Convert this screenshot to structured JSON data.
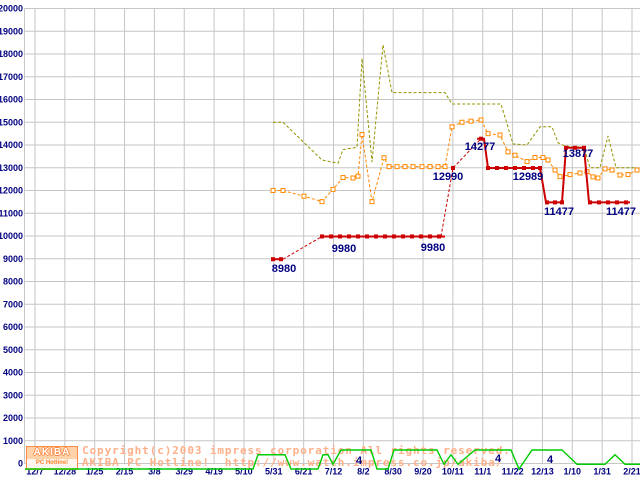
{
  "footer": {
    "logo": {
      "line1": "AKIBA",
      "line2": "PC Hotline!"
    },
    "copyright_line1": "Copyright(c)2003 impress corporation All rights reserved.",
    "copyright_line2": "AKIBA PC Hotline!  http://www.watch.impress.co.jp/akiba/"
  },
  "chart_data": {
    "type": "line",
    "title": "",
    "xlabel": "",
    "ylabel": "",
    "grid": true,
    "legend_position": "none",
    "colors": {
      "grid": "#c6c6c6",
      "axis_text": "#000080",
      "max_line": "#949400",
      "avg_line": "#ff8800",
      "min_line": "#cc0000",
      "shops_line": "#00cc00",
      "annotation": "#000080"
    },
    "y_axis": {
      "min": 0,
      "max": 20000,
      "step": 1000,
      "labels": [
        "0",
        "1000",
        "2000",
        "3000",
        "4000",
        "5000",
        "6000",
        "7000",
        "8000",
        "9000",
        "10000",
        "11000",
        "12000",
        "13000",
        "14000",
        "15000",
        "16000",
        "17000",
        "18000",
        "19000",
        "20000"
      ]
    },
    "x_axis": {
      "labels": [
        "12/7",
        "12/28",
        "1/25",
        "2/15",
        "3/8",
        "3/29",
        "4/19",
        "5/10",
        "5/31",
        "6/21",
        "7/12",
        "8/2",
        "8/30",
        "9/20",
        "10/11",
        "11/1",
        "11/22",
        "12/13",
        "1/10",
        "1/31",
        "2/21"
      ]
    },
    "series": [
      {
        "id": "max-price",
        "name": "highest-price",
        "style": "dashed",
        "points": [
          [
            273,
            15000
          ],
          [
            283,
            15000
          ],
          [
            322,
            13340
          ],
          [
            338,
            13200
          ],
          [
            343,
            13800
          ],
          [
            357,
            13900
          ],
          [
            362,
            17800
          ],
          [
            372,
            13250
          ],
          [
            383,
            18400
          ],
          [
            392,
            16300
          ],
          [
            445,
            16300
          ],
          [
            452,
            15800
          ],
          [
            501,
            15800
          ],
          [
            513,
            14050
          ],
          [
            527,
            14000
          ],
          [
            540,
            14800
          ],
          [
            552,
            14800
          ],
          [
            558,
            14100
          ],
          [
            565,
            13950
          ],
          [
            584,
            13900
          ],
          [
            590,
            13000
          ],
          [
            600,
            13000
          ],
          [
            608,
            14400
          ],
          [
            616,
            13000
          ],
          [
            637,
            13000
          ]
        ]
      },
      {
        "id": "avg-price",
        "name": "average-price",
        "style": "dashed-open-markers",
        "points": [
          [
            273,
            12000
          ],
          [
            283,
            12000
          ],
          [
            304,
            11750
          ],
          [
            322,
            11510
          ],
          [
            333,
            12050
          ],
          [
            343,
            12570
          ],
          [
            353,
            12550
          ],
          [
            358,
            12630
          ],
          [
            362,
            14460
          ],
          [
            372,
            11510
          ],
          [
            384,
            13440
          ],
          [
            389,
            13050
          ],
          [
            397,
            13050
          ],
          [
            405,
            13050
          ],
          [
            413,
            13050
          ],
          [
            422,
            13050
          ],
          [
            430,
            13050
          ],
          [
            438,
            13050
          ],
          [
            445,
            13050
          ],
          [
            452,
            14800
          ],
          [
            462,
            15000
          ],
          [
            471,
            15050
          ],
          [
            481,
            15100
          ],
          [
            488,
            14500
          ],
          [
            500,
            14440
          ],
          [
            508,
            13700
          ],
          [
            515,
            13550
          ],
          [
            527,
            13270
          ],
          [
            535,
            13450
          ],
          [
            543,
            13450
          ],
          [
            548,
            13340
          ],
          [
            555,
            12900
          ],
          [
            560,
            12610
          ],
          [
            570,
            12700
          ],
          [
            580,
            12770
          ],
          [
            587,
            12830
          ],
          [
            593,
            12600
          ],
          [
            598,
            12550
          ],
          [
            605,
            12950
          ],
          [
            612,
            12900
          ],
          [
            620,
            12680
          ],
          [
            628,
            12700
          ],
          [
            637,
            12900
          ]
        ]
      },
      {
        "id": "min-price",
        "name": "lowest-price",
        "style": "mixed",
        "segments": [
          {
            "dash": false,
            "pts": [
              [
                273,
                8980
              ],
              [
                283,
                8980
              ]
            ]
          },
          {
            "dash": true,
            "pts": [
              [
                283,
                8980
              ],
              [
                322,
                9980
              ]
            ]
          },
          {
            "dash": false,
            "pts": [
              [
                322,
                9980
              ],
              [
                445,
                9980
              ]
            ]
          },
          {
            "dash": true,
            "pts": [
              [
                441,
                9980
              ],
              [
                453,
                12990
              ],
              [
                481,
                14277
              ]
            ]
          },
          {
            "dash": false,
            "pts": [
              [
                477,
                14277
              ],
              [
                484,
                14277
              ],
              [
                488,
                12989
              ],
              [
                540,
                12989
              ],
              [
                546,
                11477
              ],
              [
                562,
                11477
              ],
              [
                566,
                13877
              ],
              [
                584,
                13877
              ],
              [
                589,
                11477
              ],
              [
                630,
                11477
              ]
            ]
          }
        ],
        "markers": [
          [
            273,
            8980
          ],
          [
            281,
            8980
          ],
          [
            322,
            9980
          ],
          [
            331,
            9980
          ],
          [
            340,
            9980
          ],
          [
            349,
            9980
          ],
          [
            358,
            9980
          ],
          [
            367,
            9980
          ],
          [
            376,
            9980
          ],
          [
            385,
            9980
          ],
          [
            394,
            9980
          ],
          [
            403,
            9980
          ],
          [
            412,
            9980
          ],
          [
            421,
            9980
          ],
          [
            430,
            9980
          ],
          [
            439,
            9980
          ],
          [
            453,
            12990
          ],
          [
            481,
            14277
          ],
          [
            488,
            12989
          ],
          [
            497,
            12989
          ],
          [
            506,
            12989
          ],
          [
            515,
            12989
          ],
          [
            524,
            12989
          ],
          [
            533,
            12989
          ],
          [
            540,
            12989
          ],
          [
            547,
            11477
          ],
          [
            555,
            11477
          ],
          [
            562,
            11477
          ],
          [
            566,
            13877
          ],
          [
            575,
            13877
          ],
          [
            584,
            13877
          ],
          [
            590,
            11477
          ],
          [
            599,
            11477
          ],
          [
            608,
            11477
          ],
          [
            617,
            11477
          ],
          [
            626,
            11477
          ]
        ]
      },
      {
        "id": "shop-count",
        "name": "number-of-shops",
        "style": "solid",
        "unit": "count",
        "points": [
          [
            25,
            0
          ],
          [
            253,
            0
          ],
          [
            258,
            3
          ],
          [
            285,
            3
          ],
          [
            291,
            0
          ],
          [
            318,
            0
          ],
          [
            323,
            3
          ],
          [
            328,
            3
          ],
          [
            333,
            1
          ],
          [
            341,
            4
          ],
          [
            371,
            4
          ],
          [
            377,
            0
          ],
          [
            388,
            0
          ],
          [
            394,
            4
          ],
          [
            437,
            4
          ],
          [
            444,
            1
          ],
          [
            451,
            3
          ],
          [
            458,
            1
          ],
          [
            475,
            4
          ],
          [
            511,
            4
          ],
          [
            519,
            0
          ],
          [
            532,
            4
          ],
          [
            562,
            4
          ],
          [
            572,
            2
          ],
          [
            577,
            1
          ],
          [
            605,
            1
          ],
          [
            615,
            3
          ],
          [
            625,
            1
          ],
          [
            640,
            1
          ]
        ]
      }
    ],
    "annotations": [
      {
        "text": "8980",
        "x": 284,
        "y": 268
      },
      {
        "text": "9980",
        "x": 344,
        "y": 248
      },
      {
        "text": "9980",
        "x": 433,
        "y": 247
      },
      {
        "text": "12990",
        "x": 448,
        "y": 176
      },
      {
        "text": "14277",
        "x": 480,
        "y": 146
      },
      {
        "text": "12989",
        "x": 528,
        "y": 176
      },
      {
        "text": "11477",
        "x": 559,
        "y": 211
      },
      {
        "text": "13877",
        "x": 578,
        "y": 153
      },
      {
        "text": "11477",
        "x": 621,
        "y": 211
      },
      {
        "text": "4",
        "x": 359,
        "y": 460
      },
      {
        "text": "4",
        "x": 498,
        "y": 458
      },
      {
        "text": "4",
        "x": 550,
        "y": 459
      }
    ]
  }
}
